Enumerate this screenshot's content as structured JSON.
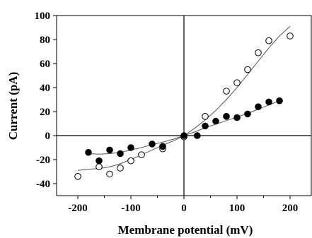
{
  "chart_data": {
    "type": "scatter",
    "title": "",
    "xlabel": "Membrane potential (mV)",
    "ylabel": "Current (pA)",
    "xlim": [
      -240,
      240
    ],
    "ylim": [
      -50,
      100
    ],
    "x_ticks": [
      -200,
      -100,
      0,
      100,
      200
    ],
    "x_minor_ticks": [
      -150,
      -50,
      50,
      150
    ],
    "y_ticks": [
      -40,
      -20,
      0,
      20,
      40,
      60,
      80,
      100
    ],
    "grid": false,
    "legend": "none",
    "series": [
      {
        "marker": "open-circle",
        "color": "#000000",
        "points": [
          [
            -200,
            -34
          ],
          [
            -160,
            -26
          ],
          [
            -140,
            -32
          ],
          [
            -120,
            -27
          ],
          [
            -100,
            -21
          ],
          [
            -80,
            -16
          ],
          [
            -40,
            -11
          ],
          [
            0,
            -1
          ],
          [
            40,
            16
          ],
          [
            80,
            37
          ],
          [
            100,
            44
          ],
          [
            120,
            55
          ],
          [
            140,
            69
          ],
          [
            160,
            79
          ],
          [
            200,
            83
          ]
        ],
        "fit": [
          [
            -200,
            -29
          ],
          [
            -180,
            -28
          ],
          [
            -160,
            -27.5
          ],
          [
            -140,
            -26
          ],
          [
            -120,
            -23.5
          ],
          [
            -100,
            -20
          ],
          [
            -80,
            -16
          ],
          [
            -60,
            -12
          ],
          [
            -40,
            -8
          ],
          [
            -20,
            -4.5
          ],
          [
            0,
            0
          ],
          [
            20,
            6
          ],
          [
            40,
            13
          ],
          [
            60,
            21
          ],
          [
            80,
            30
          ],
          [
            100,
            40
          ],
          [
            120,
            51
          ],
          [
            140,
            62
          ],
          [
            160,
            73
          ],
          [
            180,
            83
          ],
          [
            200,
            91
          ]
        ]
      },
      {
        "marker": "filled-circle",
        "color": "#000000",
        "points": [
          [
            -180,
            -14
          ],
          [
            -160,
            -21
          ],
          [
            -140,
            -12
          ],
          [
            -120,
            -15
          ],
          [
            -100,
            -10
          ],
          [
            -60,
            -7
          ],
          [
            -40,
            -9
          ],
          [
            0,
            0
          ],
          [
            25,
            0
          ],
          [
            40,
            8
          ],
          [
            60,
            12
          ],
          [
            80,
            16
          ],
          [
            100,
            15
          ],
          [
            120,
            18
          ],
          [
            140,
            24
          ],
          [
            160,
            28
          ],
          [
            180,
            29
          ]
        ],
        "fit": [
          [
            -180,
            -15
          ],
          [
            -160,
            -15.5
          ],
          [
            -140,
            -15
          ],
          [
            -120,
            -14
          ],
          [
            -100,
            -12
          ],
          [
            -80,
            -10
          ],
          [
            -60,
            -7.5
          ],
          [
            -40,
            -5.5
          ],
          [
            -20,
            -3
          ],
          [
            0,
            0
          ],
          [
            20,
            3
          ],
          [
            40,
            6.5
          ],
          [
            60,
            9.5
          ],
          [
            80,
            12.5
          ],
          [
            100,
            15.5
          ],
          [
            120,
            18.5
          ],
          [
            140,
            22
          ],
          [
            160,
            25.5
          ],
          [
            180,
            29
          ]
        ]
      }
    ]
  }
}
